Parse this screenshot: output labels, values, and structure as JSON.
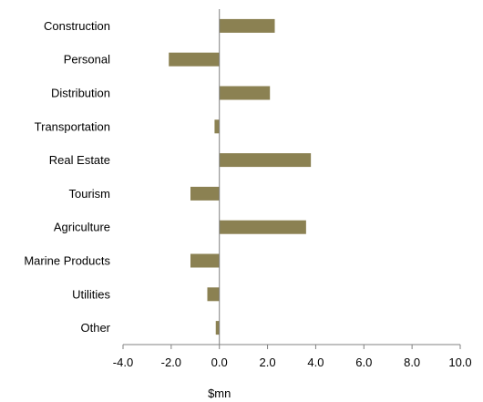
{
  "chart_data": {
    "type": "bar",
    "orientation": "horizontal",
    "categories": [
      "Construction",
      "Personal",
      "Distribution",
      "Transportation",
      "Real Estate",
      "Tourism",
      "Agriculture",
      "Marine Products",
      "Utilities",
      "Other"
    ],
    "values": [
      2.3,
      -2.1,
      2.1,
      -0.2,
      3.8,
      -1.2,
      3.6,
      -1.2,
      -0.5,
      -0.15
    ],
    "xlabel": "$mn",
    "ylabel": "",
    "xlim": [
      -4.0,
      10.0
    ],
    "xticks": [
      "-4.0",
      "-2.0",
      "0.0",
      "2.0",
      "4.0",
      "6.0",
      "8.0",
      "10.0"
    ],
    "grid": false,
    "bar_color": "#8b8152"
  }
}
